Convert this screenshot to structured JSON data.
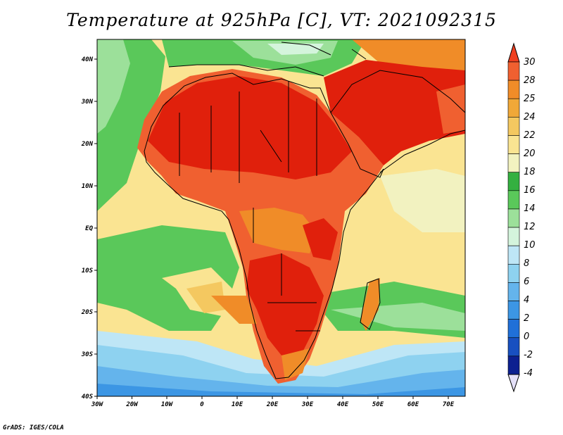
{
  "title": "Temperature at 925hPa [C], VT: 2021092315",
  "credit": "GrADS: IGES/COLA",
  "lon_labels": [
    "30W",
    "20W",
    "10W",
    "0",
    "10E",
    "20E",
    "30E",
    "40E",
    "50E",
    "60E",
    "70E"
  ],
  "lat_labels": [
    "40N",
    "30N",
    "20N",
    "10N",
    "EQ",
    "10S",
    "20S",
    "30S",
    "40S"
  ],
  "colorbar": {
    "labels": [
      "30",
      "28",
      "25",
      "24",
      "22",
      "20",
      "18",
      "16",
      "14",
      "12",
      "10",
      "8",
      "6",
      "4",
      "2",
      "0",
      "-2",
      "-4"
    ],
    "colors": [
      "#f04020",
      "#f06030",
      "#f08c28",
      "#f0a838",
      "#f4c860",
      "#fae492",
      "#f2f2c0",
      "#34b040",
      "#5ac85a",
      "#9ce09a",
      "#d4f4dc",
      "#bee6f6",
      "#8ed2f0",
      "#64b4ec",
      "#3c96e4",
      "#2070d8",
      "#1850c0",
      "#0c2090",
      "#e4e0f8"
    ]
  },
  "palette": {
    "ocean_warm": "#fae492",
    "ocean_cool": "#f2f2c0",
    "ocean_green": "#5ac85a",
    "hot": "#e0200c",
    "warm": "#f06030",
    "orange": "#f08c28",
    "south_blue": "#64b4ec"
  }
}
